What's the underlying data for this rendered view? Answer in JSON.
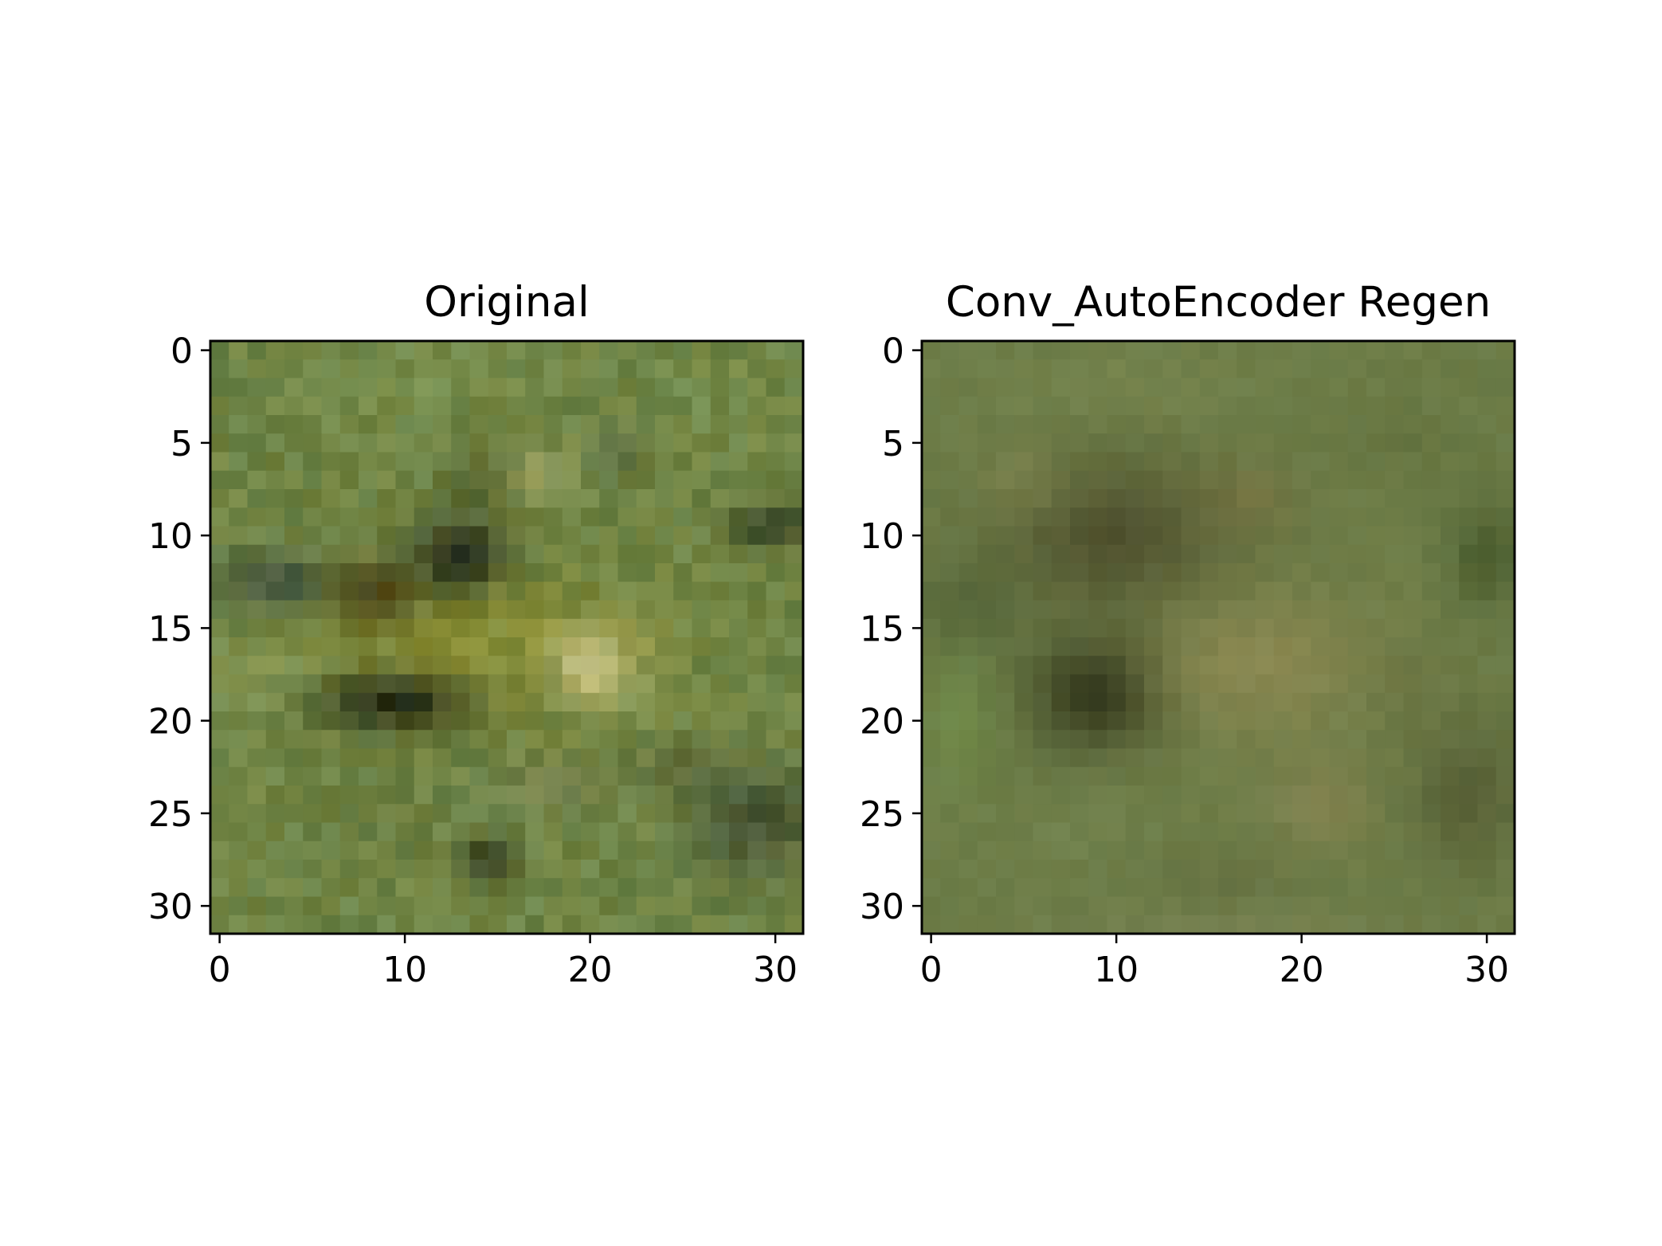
{
  "chart_data": [
    {
      "type": "heatmap",
      "title": "Original",
      "xlabel": "",
      "ylabel": "",
      "image_size": [
        32,
        32
      ],
      "xlim": [
        -0.5,
        31.5
      ],
      "ylim": [
        31.5,
        -0.5
      ],
      "x_ticks": [
        0,
        10,
        20,
        30
      ],
      "y_ticks": [
        0,
        5,
        10,
        15,
        20,
        25,
        30
      ],
      "grid": false,
      "base_color": "#6f8445",
      "blobs": [
        {
          "cx": 14,
          "cy": 16,
          "rx": 9,
          "ry": 4,
          "color": "#8e8f2e",
          "strength": 0.75
        },
        {
          "cx": 13,
          "cy": 11,
          "rx": 2.5,
          "ry": 2,
          "color": "#1f2414",
          "strength": 0.95
        },
        {
          "cx": 9.5,
          "cy": 19,
          "rx": 4,
          "ry": 1.6,
          "color": "#1c2314",
          "strength": 0.9
        },
        {
          "cx": 8.5,
          "cy": 13,
          "rx": 2.2,
          "ry": 1.8,
          "color": "#4a3d16",
          "strength": 0.8
        },
        {
          "cx": 3,
          "cy": 12.5,
          "rx": 3,
          "ry": 1.6,
          "color": "#36463a",
          "strength": 0.8
        },
        {
          "cx": 20,
          "cy": 17,
          "rx": 2.2,
          "ry": 2,
          "color": "#c9c488",
          "strength": 0.95
        },
        {
          "cx": 30,
          "cy": 9.5,
          "rx": 2.5,
          "ry": 1.2,
          "color": "#2a3219",
          "strength": 0.8
        },
        {
          "cx": 29,
          "cy": 25.5,
          "rx": 3.5,
          "ry": 3,
          "color": "#3a4530",
          "strength": 0.75
        },
        {
          "cx": 14.5,
          "cy": 27.5,
          "rx": 1.5,
          "ry": 1.2,
          "color": "#232814",
          "strength": 0.8
        },
        {
          "cx": 17,
          "cy": 6.5,
          "rx": 2,
          "ry": 1.5,
          "color": "#a6a566",
          "strength": 0.6
        },
        {
          "cx": 14,
          "cy": 7,
          "rx": 1.8,
          "ry": 1.8,
          "color": "#45501f",
          "strength": 0.6
        },
        {
          "cx": 21.5,
          "cy": 5.5,
          "rx": 1.5,
          "ry": 1.5,
          "color": "#56623d",
          "strength": 0.6
        },
        {
          "cx": 2,
          "cy": 18,
          "rx": 2.5,
          "ry": 2.5,
          "color": "#8da063",
          "strength": 0.45
        },
        {
          "cx": 18,
          "cy": 23.5,
          "rx": 3,
          "ry": 1.5,
          "color": "#7a7e58",
          "strength": 0.5
        },
        {
          "cx": 25,
          "cy": 22.5,
          "rx": 2.5,
          "ry": 1.5,
          "color": "#515a36",
          "strength": 0.55
        },
        {
          "cx": 23,
          "cy": 16,
          "rx": 2,
          "ry": 3,
          "color": "#9a9c4e",
          "strength": 0.5
        },
        {
          "cx": 10,
          "cy": 2,
          "rx": 5,
          "ry": 2,
          "color": "#86a05c",
          "strength": 0.4
        },
        {
          "cx": 26,
          "cy": 2,
          "rx": 4,
          "ry": 2,
          "color": "#7e9652",
          "strength": 0.35
        },
        {
          "cx": 10,
          "cy": 25,
          "rx": 4,
          "ry": 2.5,
          "color": "#6a7c44",
          "strength": 0.4
        }
      ]
    },
    {
      "type": "heatmap",
      "title": "Conv_AutoEncoder Regen",
      "xlabel": "",
      "ylabel": "",
      "image_size": [
        32,
        32
      ],
      "xlim": [
        -0.5,
        31.5
      ],
      "ylim": [
        31.5,
        -0.5
      ],
      "x_ticks": [
        0,
        10,
        20,
        30
      ],
      "y_ticks": [
        0,
        5,
        10,
        15,
        20,
        25,
        30
      ],
      "grid": false,
      "base_color": "#6c7c47",
      "blobs": [
        {
          "cx": 10,
          "cy": 10,
          "rx": 6,
          "ry": 4,
          "color": "#4a4a2a",
          "strength": 0.85
        },
        {
          "cx": 9,
          "cy": 18.5,
          "rx": 3.5,
          "ry": 3,
          "color": "#2b3018",
          "strength": 0.9
        },
        {
          "cx": 18,
          "cy": 17,
          "rx": 6,
          "ry": 4,
          "color": "#938b53",
          "strength": 0.75
        },
        {
          "cx": 21,
          "cy": 24.5,
          "rx": 3,
          "ry": 2.5,
          "color": "#8e8654",
          "strength": 0.6
        },
        {
          "cx": 2,
          "cy": 14,
          "rx": 3,
          "ry": 3,
          "color": "#4b5a32",
          "strength": 0.6
        },
        {
          "cx": 1.5,
          "cy": 20,
          "rx": 2,
          "ry": 4,
          "color": "#6f9048",
          "strength": 0.55
        },
        {
          "cx": 30,
          "cy": 11,
          "rx": 2,
          "ry": 3,
          "color": "#3f5226",
          "strength": 0.7
        },
        {
          "cx": 29,
          "cy": 24,
          "rx": 3,
          "ry": 4,
          "color": "#4f5530",
          "strength": 0.7
        },
        {
          "cx": 17,
          "cy": 8,
          "rx": 3,
          "ry": 2,
          "color": "#7b7140",
          "strength": 0.55
        },
        {
          "cx": 5,
          "cy": 7,
          "rx": 2.5,
          "ry": 2,
          "color": "#8a8c55",
          "strength": 0.45
        },
        {
          "cx": 10,
          "cy": 2,
          "rx": 7,
          "ry": 2,
          "color": "#849058",
          "strength": 0.4
        },
        {
          "cx": 25,
          "cy": 5,
          "rx": 3,
          "ry": 2,
          "color": "#5c6a38",
          "strength": 0.45
        },
        {
          "cx": 8,
          "cy": 26,
          "rx": 4,
          "ry": 2,
          "color": "#7a8a55",
          "strength": 0.4
        },
        {
          "cx": 16,
          "cy": 28.5,
          "rx": 4,
          "ry": 1.5,
          "color": "#5e643c",
          "strength": 0.4
        },
        {
          "cx": 26,
          "cy": 18,
          "rx": 2.5,
          "ry": 2.5,
          "color": "#6a7040",
          "strength": 0.4
        },
        {
          "cx": 16,
          "cy": 31,
          "rx": 10,
          "ry": 1,
          "color": "#8a8a62",
          "strength": 0.3
        }
      ]
    }
  ]
}
